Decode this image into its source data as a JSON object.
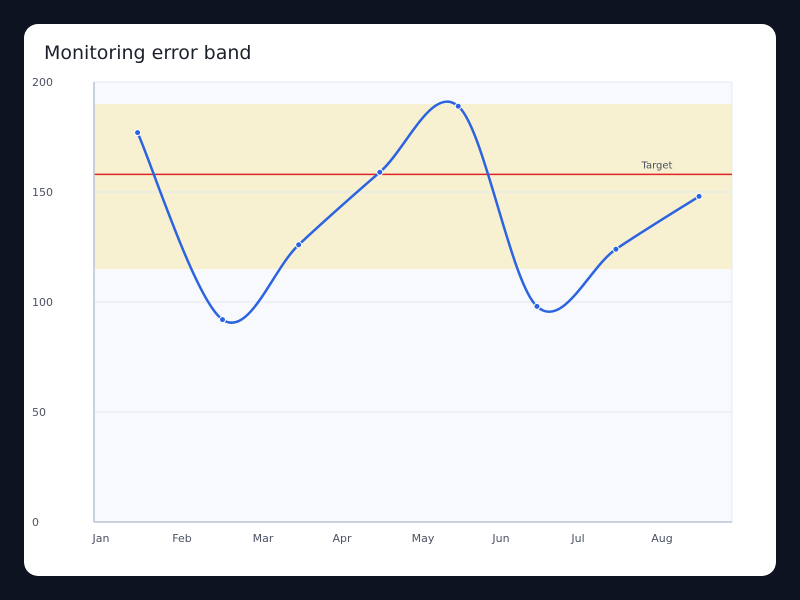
{
  "chart_data": {
    "type": "line",
    "title": "Monitoring error band",
    "xlabel": "",
    "ylabel": "",
    "x_ticks": [
      "Jan",
      "Feb",
      "Mar",
      "Apr",
      "May",
      "Jun",
      "Jul",
      "Aug"
    ],
    "y_ticks": [
      "0",
      "50",
      "100",
      "150",
      "200"
    ],
    "ylim": [
      0,
      200
    ],
    "grid": true,
    "series": [
      {
        "x": [
          "Jan 15",
          "Feb 15",
          "Mar 15",
          "Apr 15",
          "May 15",
          "Jun 15",
          "Jul 15",
          "Aug 15"
        ],
        "values": [
          177,
          92,
          126,
          159,
          189,
          98,
          124,
          148
        ],
        "color": "#2b63e0"
      }
    ],
    "band": {
      "low": 115,
      "high": 190,
      "color": "#f7f0d1"
    },
    "reference_line": {
      "label": "Target",
      "value": 158,
      "color": "#e02424"
    },
    "colors": {
      "plot_background": "#f7f9fd",
      "grid": "#e3e8f1",
      "axis": "#b8c3d8"
    }
  }
}
